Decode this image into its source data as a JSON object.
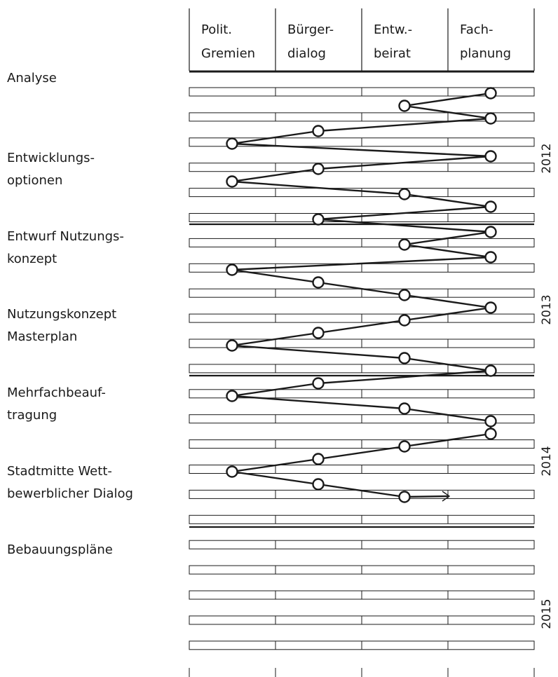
{
  "columns": [
    {
      "line1": "Polit.",
      "line2": "Gremien"
    },
    {
      "line1": "Bürger-",
      "line2": "dialog"
    },
    {
      "line1": "Entw.-",
      "line2": "beirat"
    },
    {
      "line1": "Fach-",
      "line2": "planung"
    }
  ],
  "phases": [
    {
      "line1": "Analyse",
      "line2": ""
    },
    {
      "line1": "Entwicklungs-",
      "line2": "optionen"
    },
    {
      "line1": "Entwurf Nutzungs-",
      "line2": "konzept"
    },
    {
      "line1": "Nutzungskonzept",
      "line2": "Masterplan"
    },
    {
      "line1": "Mehrfachbeauf-",
      "line2": "tragung"
    },
    {
      "line1": "Stadtmitte Wett-",
      "line2": "bewerblicher Dialog"
    },
    {
      "line1": "Bebauungspläne",
      "line2": ""
    }
  ],
  "years": [
    "2012",
    "2013",
    "2014",
    "2015"
  ],
  "timeline": {
    "path_columns": [
      4,
      3,
      4,
      2,
      1,
      4,
      2,
      1,
      3,
      4,
      2,
      4,
      3,
      4,
      1,
      2,
      3,
      4,
      3,
      2,
      1,
      3,
      4,
      2,
      1,
      3,
      4,
      4,
      3,
      2,
      1,
      2,
      3
    ]
  }
}
